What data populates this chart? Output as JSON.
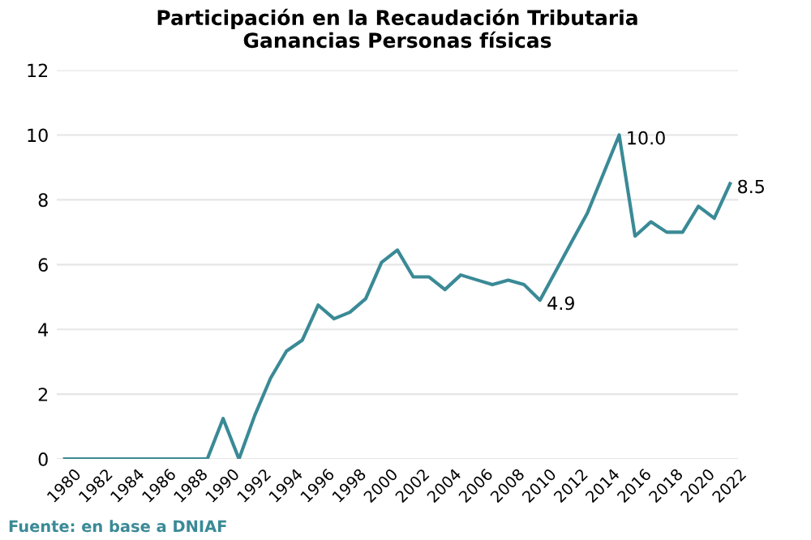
{
  "chart_data": {
    "type": "line",
    "title": "Participación en la Recaudación Tributaria\nGanancias Personas físicas",
    "x": [
      1980,
      1981,
      1982,
      1983,
      1984,
      1985,
      1986,
      1987,
      1988,
      1989,
      1990,
      1991,
      1992,
      1993,
      1994,
      1995,
      1996,
      1997,
      1998,
      1999,
      2000,
      2001,
      2002,
      2003,
      2004,
      2005,
      2006,
      2007,
      2008,
      2009,
      2010,
      2011,
      2012,
      2013,
      2014,
      2015,
      2016,
      2017,
      2018,
      2019,
      2020,
      2021,
      2022
    ],
    "series": [
      {
        "color": "#3a8a96",
        "values": [
          0,
          0,
          0,
          0,
          0,
          0,
          0,
          0,
          0,
          0,
          1.25,
          0,
          1.35,
          2.5,
          3.33,
          3.67,
          4.75,
          4.33,
          4.53,
          4.95,
          6.07,
          6.45,
          5.62,
          5.62,
          5.23,
          5.68,
          5.53,
          5.38,
          5.52,
          5.38,
          4.9,
          5.8,
          6.7,
          7.6,
          8.8,
          10.0,
          6.88,
          7.32,
          7.0,
          7.0,
          7.8,
          7.43,
          8.5
        ]
      }
    ],
    "xlim": [
      1979.5,
      2022.5
    ],
    "xticks": [
      1980,
      1982,
      1984,
      1986,
      1988,
      1990,
      1992,
      1994,
      1996,
      1998,
      2000,
      2002,
      2004,
      2006,
      2008,
      2010,
      2012,
      2014,
      2016,
      2018,
      2020,
      2022
    ],
    "ylim": [
      0,
      12
    ],
    "yticks": [
      0,
      2,
      4,
      6,
      8,
      10,
      12
    ],
    "grid": "y",
    "marker": "none",
    "line_style": "solid",
    "legend": false,
    "annotations": [
      {
        "text": "10.0",
        "x": 2015,
        "y": 10.0
      },
      {
        "text": "4.9",
        "x": 2010,
        "y": 4.9
      },
      {
        "text": "8.5",
        "x": 2022,
        "y": 8.5
      },
      "Fuente: en base a DNIAF"
    ]
  }
}
